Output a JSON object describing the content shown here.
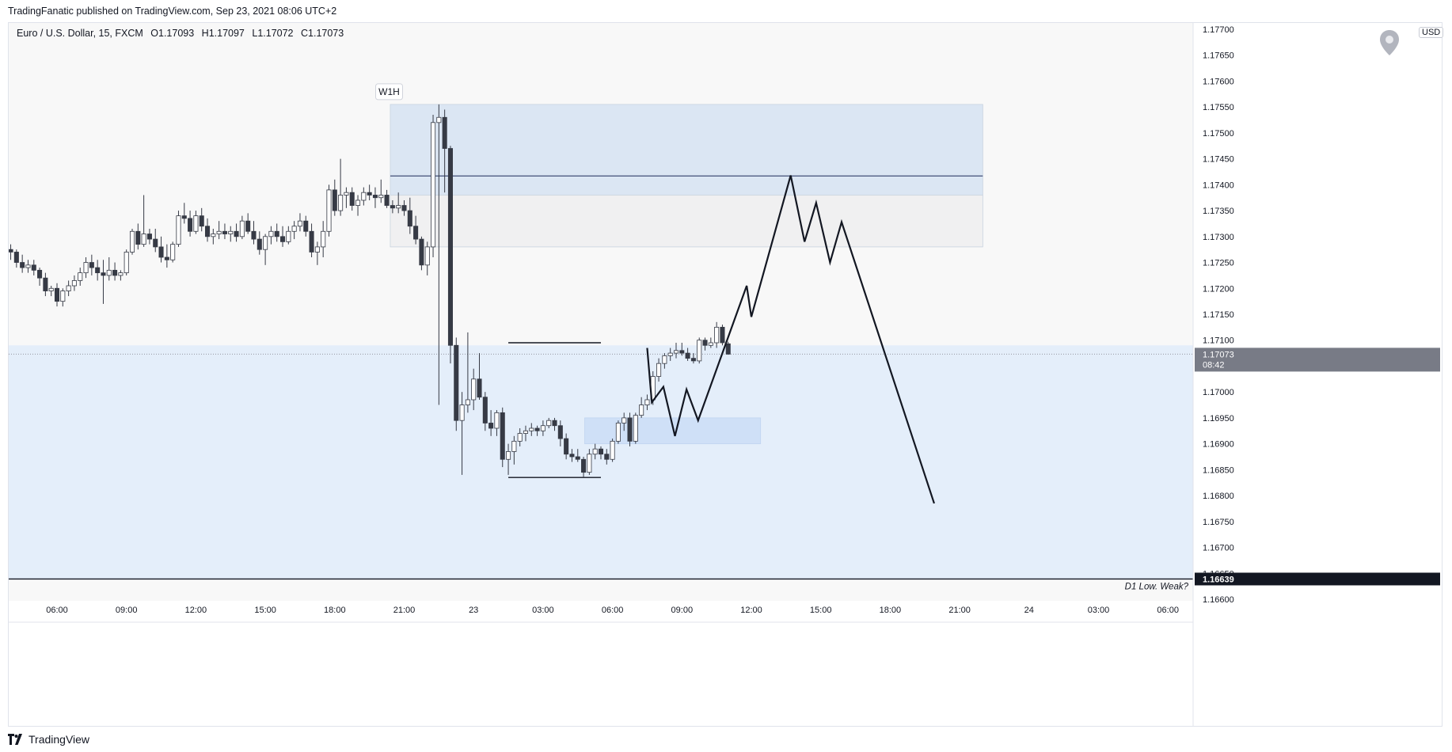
{
  "header": {
    "publisher_line": "TradingFanatic published on TradingView.com, Sep 23, 2021 08:06 UTC+2"
  },
  "legend": {
    "symbol": "Euro / U.S. Dollar, 15, FXCM",
    "open": "O1.17093",
    "high": "H1.17097",
    "low": "L1.17072",
    "close": "C1.17073"
  },
  "currency": "USD",
  "footer": {
    "brand": "TradingView"
  },
  "icons": {
    "pin": "location-pin-icon",
    "logo": "tradingview-logo-icon"
  },
  "colors": {
    "zone_blue": "#dbe6f3",
    "zone_gray": "#f0f0f1",
    "zone_lower": "#e4eefa",
    "demand_box": "#cfe0f7",
    "bear_candle": "#363a45",
    "bull_candle": "#ffffff",
    "current_price_bg": "#787b86",
    "low_price_bg": "#131722"
  },
  "chart_data": {
    "type": "candlestick",
    "timeframe": "15",
    "ylim": [
      1.166,
      1.177
    ],
    "y_ticks": [
      "1.17700",
      "1.17650",
      "1.17600",
      "1.17550",
      "1.17500",
      "1.17450",
      "1.17400",
      "1.17350",
      "1.17300",
      "1.17250",
      "1.17200",
      "1.17150",
      "1.17100",
      "1.17050",
      "1.17000",
      "1.16950",
      "1.16900",
      "1.16850",
      "1.16800",
      "1.16750",
      "1.16700",
      "1.16650",
      "1.16600"
    ],
    "x_ticks": [
      {
        "label": "06:00",
        "h": 6
      },
      {
        "label": "09:00",
        "h": 9
      },
      {
        "label": "12:00",
        "h": 12
      },
      {
        "label": "15:00",
        "h": 15
      },
      {
        "label": "18:00",
        "h": 18
      },
      {
        "label": "21:00",
        "h": 21
      },
      {
        "label": "23",
        "h": 24
      },
      {
        "label": "03:00",
        "h": 27
      },
      {
        "label": "06:00",
        "h": 30
      },
      {
        "label": "09:00",
        "h": 33
      },
      {
        "label": "12:00",
        "h": 36
      },
      {
        "label": "15:00",
        "h": 39
      },
      {
        "label": "18:00",
        "h": 42
      },
      {
        "label": "21:00",
        "h": 45
      },
      {
        "label": "24",
        "h": 48
      },
      {
        "label": "03:00",
        "h": 51
      },
      {
        "label": "06:00",
        "h": 54
      }
    ],
    "first_bar_hour": 4.0,
    "bar_minutes": 15,
    "candles": [
      [
        1.17275,
        1.17285,
        1.17255,
        1.1727
      ],
      [
        1.1727,
        1.17275,
        1.1724,
        1.1725
      ],
      [
        1.1725,
        1.17265,
        1.1723,
        1.1724
      ],
      [
        1.1724,
        1.17255,
        1.1723,
        1.17245
      ],
      [
        1.17245,
        1.17255,
        1.17225,
        1.17235
      ],
      [
        1.17235,
        1.1724,
        1.17205,
        1.1722
      ],
      [
        1.1722,
        1.1723,
        1.17185,
        1.17195
      ],
      [
        1.17195,
        1.17205,
        1.17185,
        1.172
      ],
      [
        1.172,
        1.1721,
        1.17165,
        1.17175
      ],
      [
        1.17175,
        1.172,
        1.17165,
        1.17195
      ],
      [
        1.17195,
        1.17215,
        1.17185,
        1.17205
      ],
      [
        1.17205,
        1.17225,
        1.17195,
        1.17215
      ],
      [
        1.17215,
        1.1724,
        1.17205,
        1.1723
      ],
      [
        1.1723,
        1.1726,
        1.1722,
        1.1725
      ],
      [
        1.1725,
        1.17265,
        1.17225,
        1.1724
      ],
      [
        1.1724,
        1.17255,
        1.17215,
        1.1723
      ],
      [
        1.1723,
        1.17255,
        1.1717,
        1.17225
      ],
      [
        1.17225,
        1.1726,
        1.17215,
        1.17235
      ],
      [
        1.17235,
        1.1725,
        1.17215,
        1.17225
      ],
      [
        1.17225,
        1.17235,
        1.17215,
        1.1723
      ],
      [
        1.1723,
        1.17275,
        1.17225,
        1.1727
      ],
      [
        1.1727,
        1.17315,
        1.17265,
        1.1731
      ],
      [
        1.1731,
        1.17325,
        1.17275,
        1.17285
      ],
      [
        1.17285,
        1.1738,
        1.1728,
        1.17305
      ],
      [
        1.17305,
        1.17315,
        1.17285,
        1.17295
      ],
      [
        1.17295,
        1.17315,
        1.1727,
        1.1728
      ],
      [
        1.1728,
        1.173,
        1.1725,
        1.1726
      ],
      [
        1.1726,
        1.17285,
        1.1724,
        1.17255
      ],
      [
        1.17255,
        1.1729,
        1.1725,
        1.17285
      ],
      [
        1.17285,
        1.1735,
        1.1728,
        1.1734
      ],
      [
        1.1734,
        1.17365,
        1.17325,
        1.17335
      ],
      [
        1.17335,
        1.1735,
        1.173,
        1.1731
      ],
      [
        1.1731,
        1.1735,
        1.17305,
        1.1734
      ],
      [
        1.1734,
        1.17355,
        1.1731,
        1.1732
      ],
      [
        1.1732,
        1.17335,
        1.1729,
        1.173
      ],
      [
        1.173,
        1.17315,
        1.17285,
        1.17305
      ],
      [
        1.17305,
        1.1733,
        1.17295,
        1.1731
      ],
      [
        1.1731,
        1.17325,
        1.17295,
        1.17305
      ],
      [
        1.17305,
        1.1732,
        1.1729,
        1.1731
      ],
      [
        1.1731,
        1.17325,
        1.1729,
        1.173
      ],
      [
        1.173,
        1.1734,
        1.17295,
        1.1733
      ],
      [
        1.1733,
        1.17345,
        1.17305,
        1.1731
      ],
      [
        1.1731,
        1.1733,
        1.17285,
        1.17295
      ],
      [
        1.17295,
        1.1731,
        1.17265,
        1.17275
      ],
      [
        1.17275,
        1.17305,
        1.17245,
        1.173
      ],
      [
        1.173,
        1.1732,
        1.17285,
        1.1731
      ],
      [
        1.1731,
        1.17325,
        1.1729,
        1.173
      ],
      [
        1.173,
        1.1732,
        1.1728,
        1.1729
      ],
      [
        1.1729,
        1.1732,
        1.17285,
        1.1731
      ],
      [
        1.1731,
        1.1733,
        1.17295,
        1.1732
      ],
      [
        1.1732,
        1.17345,
        1.1731,
        1.1733
      ],
      [
        1.1733,
        1.1734,
        1.173,
        1.1731
      ],
      [
        1.1731,
        1.17325,
        1.1726,
        1.1727
      ],
      [
        1.1727,
        1.1729,
        1.17245,
        1.1728
      ],
      [
        1.1728,
        1.1733,
        1.1726,
        1.1731
      ],
      [
        1.1731,
        1.174,
        1.173,
        1.1739
      ],
      [
        1.1739,
        1.1741,
        1.1734,
        1.1735
      ],
      [
        1.1735,
        1.1745,
        1.1734,
        1.1738
      ],
      [
        1.1738,
        1.17395,
        1.17355,
        1.17385
      ],
      [
        1.17385,
        1.17395,
        1.1735,
        1.1736
      ],
      [
        1.1736,
        1.1738,
        1.1734,
        1.1737
      ],
      [
        1.1737,
        1.17395,
        1.1736,
        1.17385
      ],
      [
        1.17385,
        1.174,
        1.1737,
        1.1738
      ],
      [
        1.1738,
        1.17395,
        1.17355,
        1.17375
      ],
      [
        1.17375,
        1.1741,
        1.17365,
        1.1738
      ],
      [
        1.1738,
        1.1739,
        1.17355,
        1.1736
      ],
      [
        1.1736,
        1.1737,
        1.17345,
        1.17355
      ],
      [
        1.17355,
        1.17385,
        1.17345,
        1.1736
      ],
      [
        1.1736,
        1.1737,
        1.1734,
        1.1735
      ],
      [
        1.1735,
        1.17375,
        1.17305,
        1.1732
      ],
      [
        1.1732,
        1.1734,
        1.17285,
        1.17295
      ],
      [
        1.17295,
        1.173,
        1.17235,
        1.17245
      ],
      [
        1.17245,
        1.1729,
        1.17225,
        1.1728
      ],
      [
        1.1728,
        1.17535,
        1.1726,
        1.1752
      ],
      [
        1.1752,
        1.17555,
        1.16975,
        1.1753
      ],
      [
        1.1753,
        1.17545,
        1.17385,
        1.1747
      ],
      [
        1.1747,
        1.17475,
        1.17055,
        1.1709
      ],
      [
        1.1709,
        1.17105,
        1.16925,
        1.16945
      ],
      [
        1.16945,
        1.17,
        1.1684,
        1.16975
      ],
      [
        1.16975,
        1.17115,
        1.1696,
        1.16985
      ],
      [
        1.16985,
        1.17045,
        1.16965,
        1.17025
      ],
      [
        1.17025,
        1.17075,
        1.16985,
        1.1699
      ],
      [
        1.1699,
        1.17,
        1.16925,
        1.1694
      ],
      [
        1.1694,
        1.16965,
        1.16915,
        1.1693
      ],
      [
        1.1693,
        1.16965,
        1.16915,
        1.1696
      ],
      [
        1.1696,
        1.1697,
        1.16855,
        1.1687
      ],
      [
        1.1687,
        1.169,
        1.1684,
        1.16885
      ],
      [
        1.16885,
        1.16915,
        1.1686,
        1.16905
      ],
      [
        1.16905,
        1.1693,
        1.16895,
        1.1692
      ],
      [
        1.1692,
        1.16935,
        1.16905,
        1.16925
      ],
      [
        1.16925,
        1.1694,
        1.16915,
        1.1693
      ],
      [
        1.1693,
        1.16935,
        1.16915,
        1.16925
      ],
      [
        1.16925,
        1.16945,
        1.16915,
        1.16935
      ],
      [
        1.16935,
        1.1695,
        1.1693,
        1.16945
      ],
      [
        1.16945,
        1.1695,
        1.16925,
        1.16935
      ],
      [
        1.16935,
        1.16945,
        1.16895,
        1.1691
      ],
      [
        1.1691,
        1.1692,
        1.1687,
        1.1688
      ],
      [
        1.1688,
        1.1689,
        1.16865,
        1.16875
      ],
      [
        1.16875,
        1.1689,
        1.16865,
        1.1687
      ],
      [
        1.1687,
        1.16875,
        1.16835,
        1.16845
      ],
      [
        1.16845,
        1.1689,
        1.1684,
        1.1688
      ],
      [
        1.1688,
        1.169,
        1.1687,
        1.1689
      ],
      [
        1.1689,
        1.16895,
        1.1687,
        1.1688
      ],
      [
        1.1688,
        1.1689,
        1.1686,
        1.1687
      ],
      [
        1.1687,
        1.1691,
        1.16865,
        1.16905
      ],
      [
        1.16905,
        1.16945,
        1.169,
        1.1694
      ],
      [
        1.1694,
        1.1696,
        1.16925,
        1.1695
      ],
      [
        1.1695,
        1.1696,
        1.16895,
        1.16905
      ],
      [
        1.16905,
        1.1696,
        1.169,
        1.16955
      ],
      [
        1.16955,
        1.1699,
        1.1695,
        1.16975
      ],
      [
        1.16975,
        1.16995,
        1.16965,
        1.16985
      ],
      [
        1.16985,
        1.1704,
        1.16975,
        1.1703
      ],
      [
        1.1703,
        1.17065,
        1.1702,
        1.17055
      ],
      [
        1.17055,
        1.17075,
        1.17045,
        1.1707
      ],
      [
        1.1707,
        1.17085,
        1.1706,
        1.17075
      ],
      [
        1.17075,
        1.17095,
        1.17065,
        1.1708
      ],
      [
        1.1708,
        1.17095,
        1.1707,
        1.17075
      ],
      [
        1.17075,
        1.17085,
        1.1706,
        1.17065
      ],
      [
        1.17065,
        1.17075,
        1.17055,
        1.1706
      ],
      [
        1.1706,
        1.17105,
        1.17055,
        1.171
      ],
      [
        1.171,
        1.17105,
        1.1708,
        1.1709
      ],
      [
        1.1709,
        1.17105,
        1.17085,
        1.17095
      ],
      [
        1.17095,
        1.17135,
        1.17085,
        1.17125
      ],
      [
        1.17125,
        1.1713,
        1.1709,
        1.17095
      ],
      [
        1.17093,
        1.17097,
        1.17072,
        1.17073
      ]
    ],
    "zones": [
      {
        "name": "upper-supply-zone",
        "x0_h": 20.4,
        "x1_h": 46.0,
        "y0": 1.1738,
        "y1": 1.17555,
        "color": "#dbe6f3"
      },
      {
        "name": "inner-gray-zone",
        "x0_h": 20.4,
        "x1_h": 46.0,
        "y0": 1.1728,
        "y1": 1.1738,
        "color": "#f0f0f1"
      },
      {
        "name": "lower-range-zone",
        "x0_h": 2.0,
        "x1_h": 55.8,
        "y0": 1.16638,
        "y1": 1.1709,
        "color": "#e4eefa"
      },
      {
        "name": "demand-box",
        "x0_h": 28.8,
        "x1_h": 36.4,
        "y0": 1.169,
        "y1": 1.1695,
        "color": "#cfe0f7"
      }
    ],
    "hlines": [
      {
        "name": "w1h-midline",
        "x0_h": 20.4,
        "x1_h": 46.0,
        "y": 1.17417
      },
      {
        "name": "range-high-line",
        "x0_h": 25.5,
        "x1_h": 29.5,
        "y": 1.17095
      },
      {
        "name": "range-low-line",
        "x0_h": 25.5,
        "x1_h": 29.5,
        "y": 1.16835
      },
      {
        "name": "d1-low-line",
        "x0_h": 2.0,
        "x1_h": 55.8,
        "y": 1.16639
      }
    ],
    "projection_path": [
      [
        31.5,
        1.17085
      ],
      [
        31.7,
        1.1698
      ],
      [
        32.2,
        1.1701
      ],
      [
        32.7,
        1.16915
      ],
      [
        33.2,
        1.17005
      ],
      [
        33.7,
        1.16945
      ],
      [
        35.8,
        1.17205
      ],
      [
        36.0,
        1.17145
      ],
      [
        37.7,
        1.17418
      ],
      [
        38.3,
        1.1729
      ],
      [
        38.8,
        1.17365
      ],
      [
        39.4,
        1.1725
      ],
      [
        39.9,
        1.17328
      ],
      [
        43.9,
        1.16785
      ]
    ],
    "annotations": {
      "w1h_label": "W1H",
      "d1_low_label": "D1 Low. Weak?"
    },
    "current_price": {
      "value": 1.17073,
      "label": "1.17073",
      "countdown": "08:42"
    },
    "low_price": {
      "value": 1.16639,
      "label": "1.16639"
    }
  }
}
